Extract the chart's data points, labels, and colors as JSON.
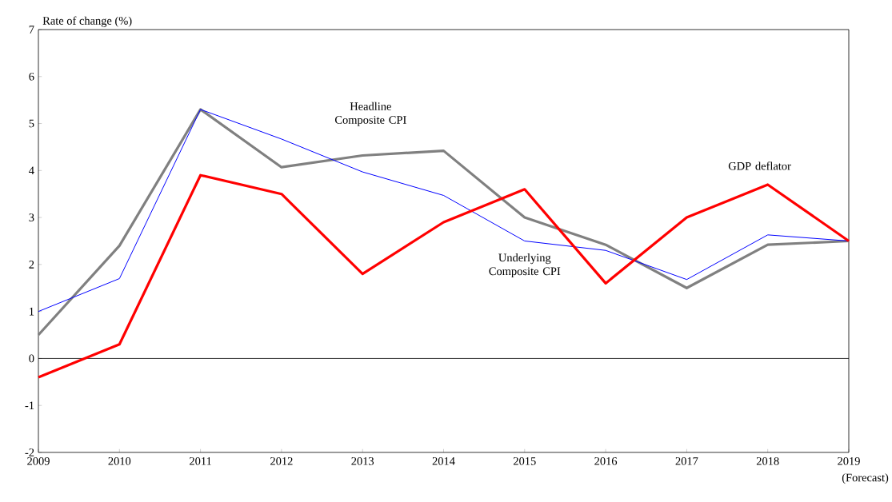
{
  "chart_data": {
    "type": "line",
    "ylabel": "Rate of change (%)",
    "x": [
      2009,
      2010,
      2011,
      2012,
      2013,
      2014,
      2015,
      2016,
      2017,
      2018,
      2019
    ],
    "series": [
      {
        "name": "Headline Composite CPI",
        "color": "#808080",
        "values": [
          0.5,
          2.4,
          5.3,
          4.07,
          4.32,
          4.42,
          3.0,
          2.42,
          1.5,
          2.42,
          2.5
        ]
      },
      {
        "name": "Underlying Composite CPI",
        "color": "#0000ff",
        "values": [
          1.0,
          1.7,
          5.3,
          4.67,
          3.97,
          3.47,
          2.5,
          2.3,
          1.68,
          2.63,
          2.5
        ]
      },
      {
        "name": "GDP deflator",
        "color": "#ff0000",
        "values": [
          -0.4,
          0.3,
          3.9,
          3.5,
          1.8,
          2.9,
          3.6,
          1.6,
          3.0,
          3.7,
          2.5
        ]
      }
    ],
    "xlim": [
      2009,
      2019
    ],
    "ylim": [
      -2,
      7
    ],
    "xticks": [
      2009,
      2010,
      2011,
      2012,
      2013,
      2014,
      2015,
      2016,
      2017,
      2018,
      2019
    ],
    "yticks": [
      -2,
      -1,
      0,
      1,
      2,
      3,
      4,
      5,
      6,
      7
    ],
    "ref_lines": [
      {
        "axis": "y",
        "value": 0,
        "color": "#000000"
      }
    ],
    "annotations": [
      "(Forecast)"
    ],
    "grid": false,
    "marker": "none",
    "line_style": "solid"
  }
}
